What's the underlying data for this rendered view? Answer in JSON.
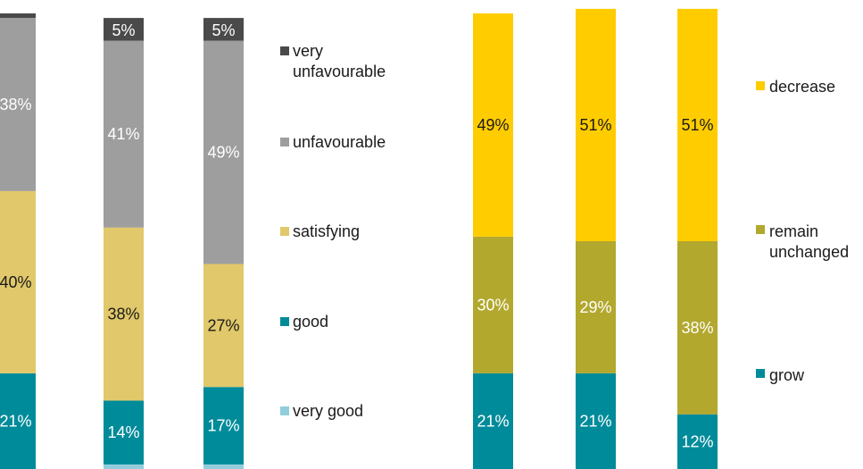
{
  "chart_data": [
    {
      "type": "bar",
      "stacked": true,
      "ylim": [
        0,
        100
      ],
      "series": [
        {
          "name": "very good",
          "color": "#92cddc",
          "values": [
            0,
            1,
            1
          ],
          "labels": [
            "",
            "",
            ""
          ]
        },
        {
          "name": "good",
          "color": "#008b9a",
          "values": [
            21,
            14,
            17
          ],
          "labels": [
            "21%",
            "14%",
            "17%"
          ]
        },
        {
          "name": "satisfying",
          "color": "#e1c86a",
          "values": [
            40,
            38,
            27
          ],
          "labels": [
            "40%",
            "38%",
            "27%"
          ]
        },
        {
          "name": "unfavourable",
          "color": "#9e9e9e",
          "values": [
            38,
            41,
            49
          ],
          "labels": [
            "38%",
            "41%",
            "49%"
          ]
        },
        {
          "name": "very unfavourable",
          "color": "#4a4a4a",
          "values": [
            1,
            5,
            5
          ],
          "labels": [
            "",
            "5%",
            "5%"
          ]
        }
      ],
      "legend": [
        "very unfavourable",
        "unfavourable",
        "satisfying",
        "good",
        "very good"
      ],
      "legend_placement": "right"
    },
    {
      "type": "bar",
      "stacked": true,
      "ylim": [
        0,
        100
      ],
      "series": [
        {
          "name": "grow",
          "color": "#008b9a",
          "values": [
            21,
            21,
            12
          ],
          "labels": [
            "21%",
            "21%",
            "12%"
          ]
        },
        {
          "name": "remain unchanged",
          "color": "#b2a82e",
          "values": [
            30,
            29,
            38
          ],
          "labels": [
            "30%",
            "29%",
            "38%"
          ]
        },
        {
          "name": "decrease",
          "color": "#ffcc00",
          "values": [
            49,
            51,
            51
          ],
          "labels": [
            "49%",
            "51%",
            "51%"
          ]
        }
      ],
      "legend": [
        "decrease",
        "remain unchanged",
        "grow"
      ],
      "legend_placement": "right"
    }
  ]
}
